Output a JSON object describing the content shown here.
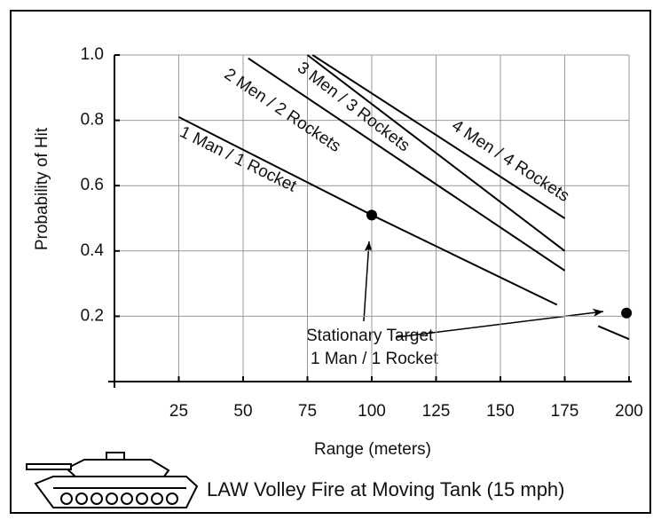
{
  "chart_data": {
    "type": "line",
    "title": "LAW Volley Fire at Moving Tank (15 mph)",
    "x_label": "Range (meters)",
    "y_label": "Probability of Hit",
    "xlim": [
      0,
      200
    ],
    "ylim": [
      0,
      1
    ],
    "xticks": [
      25,
      50,
      75,
      100,
      125,
      150,
      175,
      200
    ],
    "yticks": [
      0.2,
      0.4,
      0.6,
      0.8,
      {
        "value": 1,
        "label": "1.0"
      }
    ],
    "grid": true,
    "series": [
      {
        "name": "1 Man / 1 Rocket",
        "color": "#000000",
        "x": [
          25,
          100,
          172,
          180,
          188,
          200
        ],
        "values": [
          0.81,
          0.51,
          0.235,
          null,
          0.17,
          0.13
        ]
      },
      {
        "name": "2 Men / 2 Rockets",
        "color": "#000000",
        "x": [
          52,
          175
        ],
        "values": [
          0.99,
          0.34
        ]
      },
      {
        "name": "3 Men / 3 Rockets",
        "color": "#000000",
        "x": [
          75,
          175
        ],
        "values": [
          1.0,
          0.4
        ]
      },
      {
        "name": "4 Men / 4 Rockets",
        "color": "#000000",
        "x": [
          77,
          175
        ],
        "values": [
          1.0,
          0.5
        ]
      }
    ],
    "markers": {
      "x": [
        100,
        199
      ],
      "values": [
        0.51,
        0.21
      ]
    },
    "annotation": [
      "Stationary Target",
      "1 Man / 1 Rocket"
    ]
  }
}
